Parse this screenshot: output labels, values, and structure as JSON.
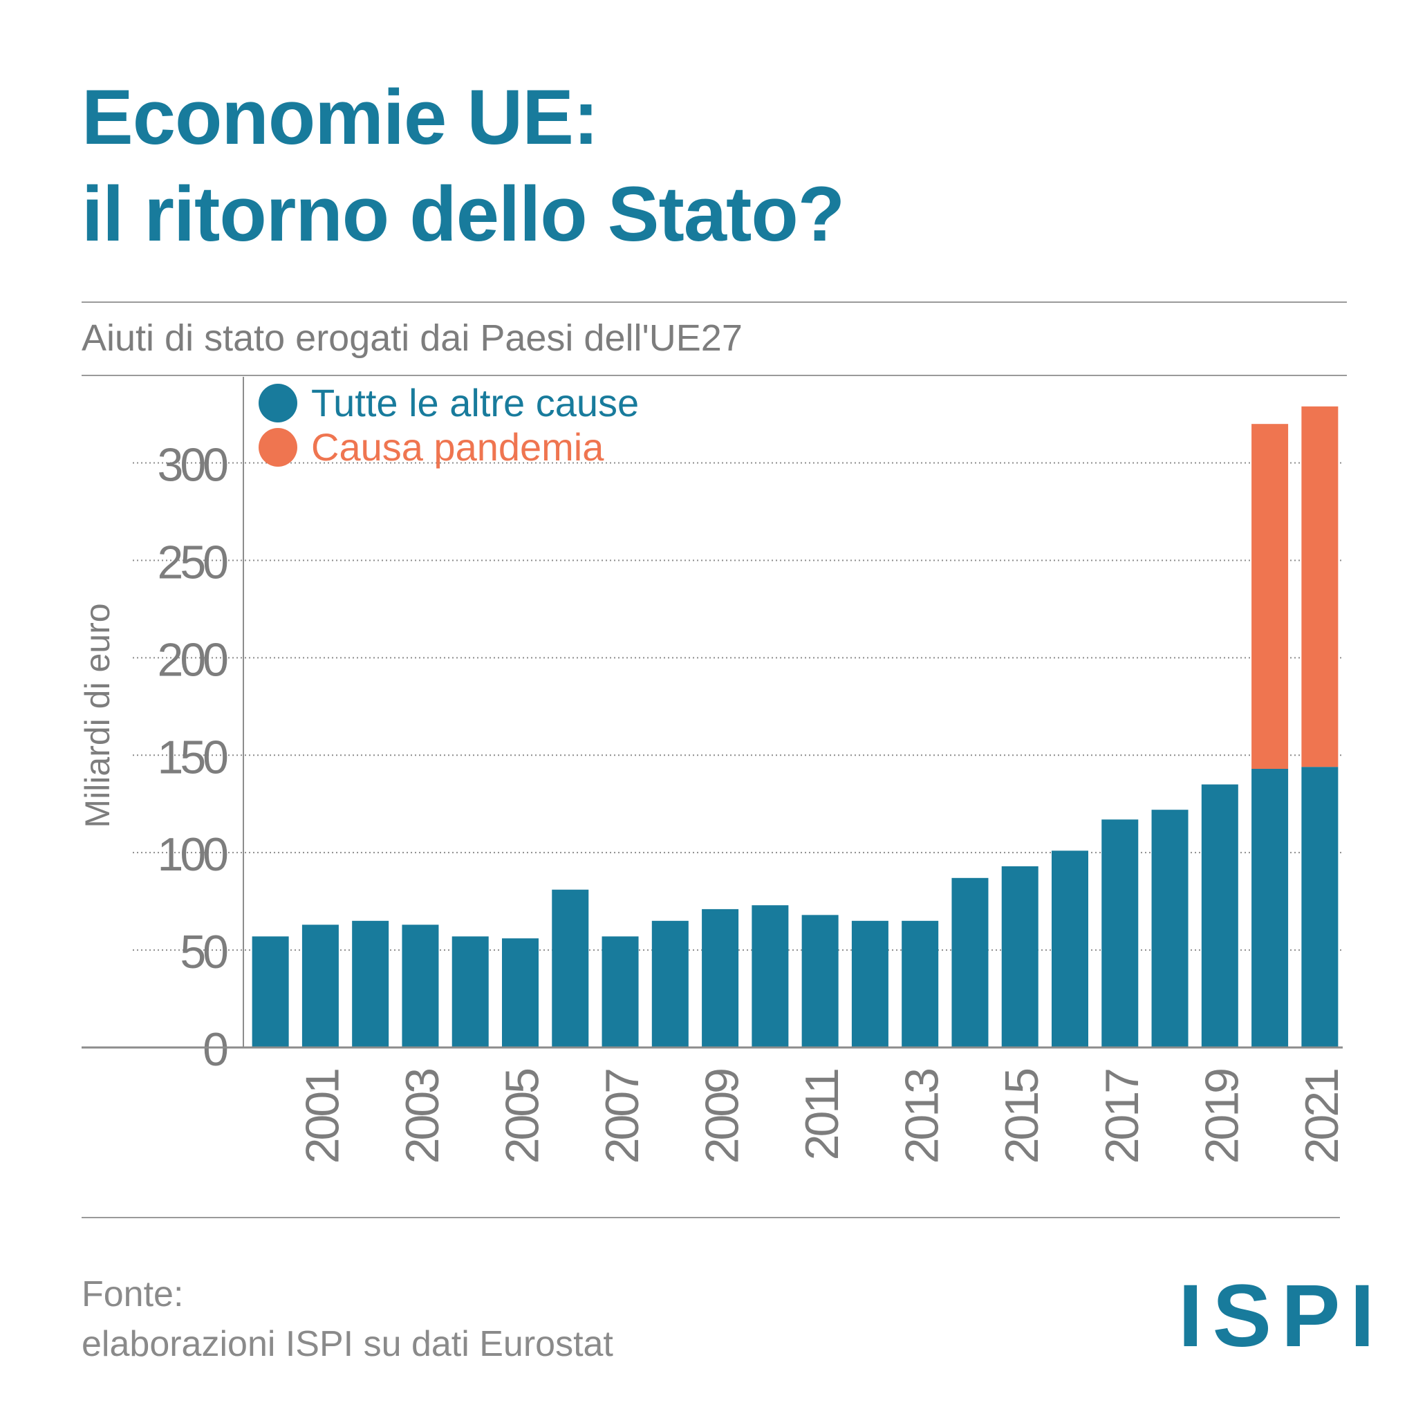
{
  "header": {
    "title_line1": "Economie UE:",
    "title_line2": "il ritorno dello Stato?",
    "subtitle": "Aiuti di stato erogati dai Paesi dell'UE27"
  },
  "footer": {
    "source_label": "Fonte:",
    "source_text": "elaborazioni ISPI su dati Eurostat",
    "logo_text": "ISPI"
  },
  "colors": {
    "accent": "#187b9c",
    "pandemic": "#ef7550",
    "muted_text": "#7d7d7d"
  },
  "chart_data": {
    "type": "bar",
    "stacked": true,
    "ylabel": "Miliardi di euro",
    "ylim": [
      0,
      330
    ],
    "yticks": [
      0,
      50,
      100,
      150,
      200,
      250,
      300
    ],
    "grid": true,
    "legend_position": "top-left",
    "categories": [
      "2000",
      "2001",
      "2002",
      "2003",
      "2004",
      "2005",
      "2006",
      "2007",
      "2008",
      "2009",
      "2010",
      "2011",
      "2012",
      "2013",
      "2014",
      "2015",
      "2016",
      "2017",
      "2018",
      "2019",
      "2020",
      "2021"
    ],
    "xtick_labels": [
      "",
      "2001",
      "",
      "2003",
      "",
      "2005",
      "",
      "2007",
      "",
      "2009",
      "",
      "2011",
      "",
      "2013",
      "",
      "2015",
      "",
      "2017",
      "",
      "2019",
      "",
      "2021"
    ],
    "series": [
      {
        "name": "Tutte le altre cause",
        "color": "#187b9c",
        "values": [
          57,
          63,
          65,
          63,
          57,
          56,
          81,
          57,
          65,
          71,
          73,
          68,
          65,
          65,
          87,
          93,
          101,
          117,
          122,
          135,
          143,
          144
        ]
      },
      {
        "name": "Causa pandemia",
        "color": "#ef7550",
        "values": [
          0,
          0,
          0,
          0,
          0,
          0,
          0,
          0,
          0,
          0,
          0,
          0,
          0,
          0,
          0,
          0,
          0,
          0,
          0,
          0,
          177,
          185
        ]
      }
    ]
  }
}
